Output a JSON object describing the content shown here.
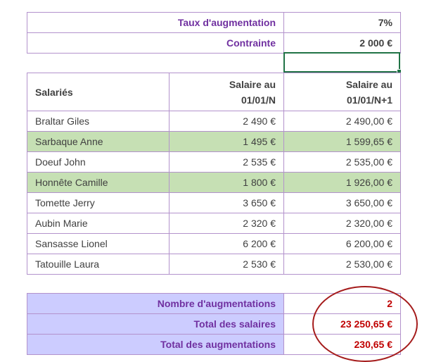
{
  "params": {
    "rate_label": "Taux d'augmentation",
    "rate_value": "7%",
    "constraint_label": "Contrainte",
    "constraint_value": "2 000 €"
  },
  "table": {
    "headers": {
      "name": "Salariés",
      "col1_line1": "Salaire au",
      "col1_line2": "01/01/N",
      "col2_line1": "Salaire au",
      "col2_line2": "01/01/N+1"
    },
    "rows": [
      {
        "name": "Braltar Giles",
        "salary_n": "2 490 €",
        "salary_n1": "2 490,00 €",
        "highlight": false
      },
      {
        "name": "Sarbaque Anne",
        "salary_n": "1 495 €",
        "salary_n1": "1 599,65 €",
        "highlight": true
      },
      {
        "name": "Doeuf John",
        "salary_n": "2 535 €",
        "salary_n1": "2 535,00 €",
        "highlight": false
      },
      {
        "name": "Honnête Camille",
        "salary_n": "1 800 €",
        "salary_n1": "1 926,00 €",
        "highlight": true
      },
      {
        "name": "Tomette Jerry",
        "salary_n": "3 650 €",
        "salary_n1": "3 650,00 €",
        "highlight": false
      },
      {
        "name": "Aubin Marie",
        "salary_n": "2 320 €",
        "salary_n1": "2 320,00 €",
        "highlight": false
      },
      {
        "name": "Sansasse Lionel",
        "salary_n": "6 200 €",
        "salary_n1": "6 200,00 €",
        "highlight": false
      },
      {
        "name": "Tatouille Laura",
        "salary_n": "2 530 €",
        "salary_n1": "2 530,00 €",
        "highlight": false
      }
    ]
  },
  "summary": {
    "count_label": "Nombre d'augmentations",
    "count_value": "2",
    "total_salaries_label": "Total des salaires",
    "total_salaries_value": "23 250,65 €",
    "total_increase_label": "Total des augmentations",
    "total_increase_value": "230,65 €"
  },
  "colors": {
    "border": "#b392cc",
    "label_purple": "#7030a0",
    "highlight_green": "#c6e0b4",
    "summary_blue": "#ccccff",
    "value_red": "#c00000",
    "selection_green": "#217346",
    "circle_red": "#a51c1c"
  }
}
